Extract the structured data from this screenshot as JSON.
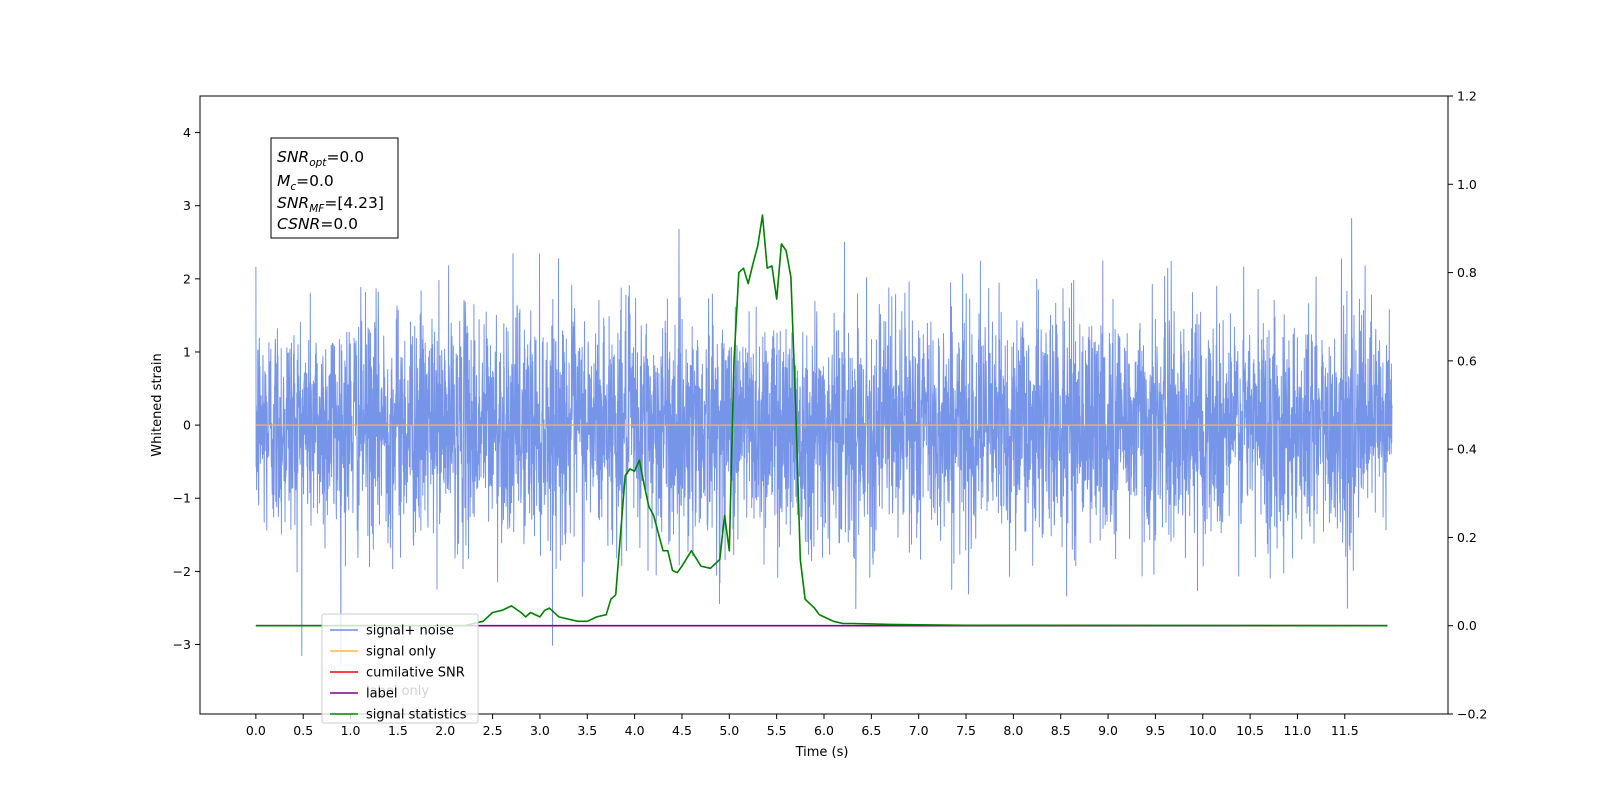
{
  "chart_data": {
    "type": "line",
    "title": "",
    "xlabel": "Time (s)",
    "ylabel": "Whitened strain",
    "x_ticks": [
      "0.0",
      "0.5",
      "1.0",
      "1.5",
      "2.0",
      "2.5",
      "3.0",
      "3.5",
      "4.0",
      "4.5",
      "5.0",
      "5.5",
      "6.0",
      "6.5",
      "7.0",
      "7.5",
      "8.0",
      "8.5",
      "9.0",
      "9.5",
      "10.0",
      "10.5",
      "11.0",
      "11.5"
    ],
    "xlim": [
      -0.59,
      12.59
    ],
    "ylim_left": [
      -3.95,
      4.5
    ],
    "yticks_left": [
      "4",
      "3",
      "2",
      "1",
      "0",
      "−1",
      "−2",
      "−3"
    ],
    "yticks_left_values": [
      4,
      3,
      2,
      1,
      0,
      -1,
      -2,
      -3
    ],
    "ylim_right": [
      -0.2,
      1.2
    ],
    "yticks_right": [
      "1.2",
      "1.0",
      "0.8",
      "0.6",
      "0.4",
      "0.2",
      "0.0",
      "−0.2"
    ],
    "yticks_right_values": [
      1.2,
      1.0,
      0.8,
      0.6,
      0.4,
      0.2,
      0.0,
      -0.2
    ],
    "colors": {
      "signal_noise": "#6b8ce6",
      "signal_only": "#ffb347",
      "cumulative_snr": "#ff0000",
      "label": "#800080",
      "signal_statistics": "#008000"
    },
    "series": [
      {
        "name": "signal+ noise",
        "axis": "left",
        "note_noise_std": 0.78,
        "duration_s": 12.0
      },
      {
        "name": "signal only",
        "axis": "left",
        "x": [
          0.0,
          12.0
        ],
        "y": [
          0.0,
          0.0
        ]
      },
      {
        "name": "cumilative SNR",
        "axis": "right",
        "x": [],
        "y": []
      },
      {
        "name": "label",
        "axis": "right",
        "x": [
          0.0,
          11.95
        ],
        "y": [
          0.0,
          0.0
        ]
      },
      {
        "name": "signal statistics",
        "axis": "right",
        "x": [
          0.0,
          2.2,
          2.3,
          2.4,
          2.5,
          2.6,
          2.7,
          2.8,
          2.85,
          2.9,
          3.0,
          3.05,
          3.1,
          3.2,
          3.3,
          3.4,
          3.5,
          3.6,
          3.7,
          3.75,
          3.8,
          3.9,
          3.95,
          4.0,
          4.05,
          4.1,
          4.15,
          4.2,
          4.3,
          4.35,
          4.4,
          4.45,
          4.5,
          4.6,
          4.7,
          4.8,
          4.9,
          4.95,
          5.0,
          5.05,
          5.1,
          5.15,
          5.2,
          5.25,
          5.3,
          5.35,
          5.4,
          5.45,
          5.5,
          5.55,
          5.6,
          5.65,
          5.7,
          5.75,
          5.8,
          5.9,
          5.95,
          6.0,
          6.05,
          6.1,
          6.2,
          6.3,
          6.5,
          6.7,
          7.0,
          7.5,
          11.95
        ],
        "y": [
          0.0,
          0.0,
          0.005,
          0.01,
          0.03,
          0.035,
          0.045,
          0.03,
          0.02,
          0.03,
          0.02,
          0.035,
          0.04,
          0.02,
          0.015,
          0.01,
          0.01,
          0.02,
          0.025,
          0.06,
          0.07,
          0.34,
          0.355,
          0.35,
          0.375,
          0.32,
          0.27,
          0.25,
          0.17,
          0.17,
          0.125,
          0.12,
          0.135,
          0.17,
          0.135,
          0.13,
          0.15,
          0.25,
          0.17,
          0.6,
          0.8,
          0.81,
          0.775,
          0.82,
          0.86,
          0.93,
          0.81,
          0.815,
          0.74,
          0.865,
          0.85,
          0.79,
          0.5,
          0.15,
          0.06,
          0.04,
          0.025,
          0.02,
          0.015,
          0.01,
          0.005,
          0.005,
          0.004,
          0.003,
          0.002,
          0.001,
          0.0
        ]
      }
    ],
    "legend": {
      "position": "bottom-left",
      "entries": [
        "signal+ noise",
        "signal only",
        "cumilative SNR",
        "label",
        "signal statistics"
      ],
      "hidden_behind_text": "label only"
    },
    "annotation": {
      "snr_opt": {
        "main": "SNR",
        "sub": "opt",
        "value": "=0.0"
      },
      "mc": {
        "main": "M",
        "sub": "c",
        "value": "=0.0"
      },
      "snr_mf": {
        "main": "SNR",
        "sub": "MF",
        "value": "=[4.23]"
      },
      "csnr": {
        "main": "CSNR",
        "value": "=0.0"
      }
    }
  }
}
